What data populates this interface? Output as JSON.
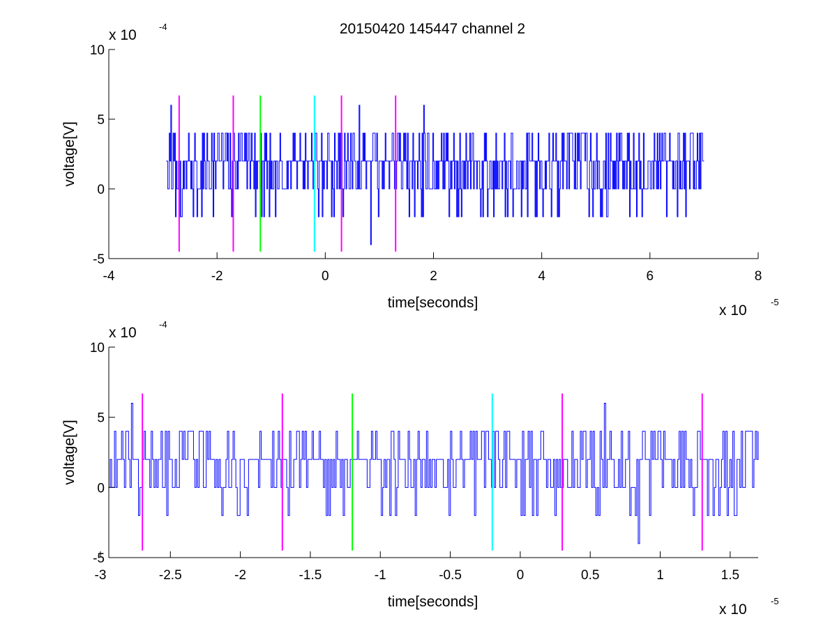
{
  "figure": {
    "title": "20150420 145447 channel 2"
  },
  "chart_data": [
    {
      "type": "line",
      "name": "full-record",
      "xlabel": "time[seconds]",
      "ylabel": "voltage[V]",
      "x_exponent_base": "x 10",
      "x_exponent_power": "-5",
      "y_exponent_base": "x 10",
      "y_exponent_power": "-4",
      "xlim": [
        -4,
        8
      ],
      "ylim": [
        -5,
        10
      ],
      "x_ticks": [
        -4,
        -2,
        0,
        2,
        4,
        6,
        8
      ],
      "x_tick_labels": [
        "-4",
        "-2",
        "0",
        "2",
        "4",
        "6",
        "8"
      ],
      "y_ticks": [
        -5,
        0,
        5,
        10
      ],
      "y_tick_labels": [
        "-5",
        "0",
        "5",
        "10"
      ],
      "signal": {
        "color": "#0000ff",
        "x_start": -2.94,
        "x_end": 7.0,
        "levels_x1e-4": [
          -4,
          -2,
          0,
          2,
          4,
          6
        ],
        "peaks": [
          {
            "x": -2.85,
            "y": 6
          },
          {
            "x": 0.63,
            "y": 6
          },
          {
            "x": 1.82,
            "y": 6
          },
          {
            "x": 0.84,
            "y": -4
          }
        ]
      },
      "markers": [
        {
          "x": -2.7,
          "color": "#ff00ff",
          "y_top": 6.7,
          "y_bottom": -4.5
        },
        {
          "x": -1.7,
          "color": "#ff00ff",
          "y_top": 6.7,
          "y_bottom": -4.5
        },
        {
          "x": -1.2,
          "color": "#00ff00",
          "y_top": 6.7,
          "y_bottom": -4.5
        },
        {
          "x": -0.2,
          "color": "#00ffff",
          "y_top": 6.7,
          "y_bottom": -4.5
        },
        {
          "x": 0.3,
          "color": "#ff00ff",
          "y_top": 6.7,
          "y_bottom": -4.5
        },
        {
          "x": 1.3,
          "color": "#ff00ff",
          "y_top": 6.7,
          "y_bottom": -4.5
        }
      ],
      "grid": false,
      "legend": "none"
    },
    {
      "type": "line",
      "name": "zoomed-record",
      "xlabel": "time[seconds]",
      "ylabel": "voltage[V]",
      "x_exponent_base": "x 10",
      "x_exponent_power": "-5",
      "y_exponent_base": "x 10",
      "y_exponent_power": "-4",
      "xlim": [
        -2.94,
        1.7
      ],
      "ylim": [
        -5,
        10
      ],
      "x_ticks": [
        -3,
        -2.5,
        -2,
        -1.5,
        -1,
        -0.5,
        0,
        0.5,
        1,
        1.5
      ],
      "x_tick_labels": [
        "-3",
        "-2.5",
        "-2",
        "-1.5",
        "-1",
        "-0.5",
        "0",
        "0.5",
        "1",
        "1.5"
      ],
      "y_ticks": [
        -5,
        0,
        5,
        10
      ],
      "y_tick_labels": [
        "-5",
        "0",
        "5",
        "10"
      ],
      "signal": {
        "color": "#0000ff",
        "x_start": -2.94,
        "x_end": 1.7,
        "levels_x1e-4": [
          -4,
          -2,
          0,
          2,
          4,
          6
        ],
        "peaks": [
          {
            "x": -2.78,
            "y": 6
          },
          {
            "x": 0.6,
            "y": 6
          },
          {
            "x": 0.84,
            "y": -4
          }
        ]
      },
      "markers": [
        {
          "x": -2.7,
          "color": "#ff00ff",
          "y_top": 6.7,
          "y_bottom": -4.5
        },
        {
          "x": -1.7,
          "color": "#ff00ff",
          "y_top": 6.7,
          "y_bottom": -4.5
        },
        {
          "x": -1.2,
          "color": "#00ff00",
          "y_top": 6.7,
          "y_bottom": -4.5
        },
        {
          "x": -0.2,
          "color": "#00ffff",
          "y_top": 6.7,
          "y_bottom": -4.5
        },
        {
          "x": 0.3,
          "color": "#ff00ff",
          "y_top": 6.7,
          "y_bottom": -4.5
        },
        {
          "x": 1.3,
          "color": "#ff00ff",
          "y_top": 6.7,
          "y_bottom": -4.5
        }
      ],
      "grid": false,
      "legend": "none"
    }
  ]
}
